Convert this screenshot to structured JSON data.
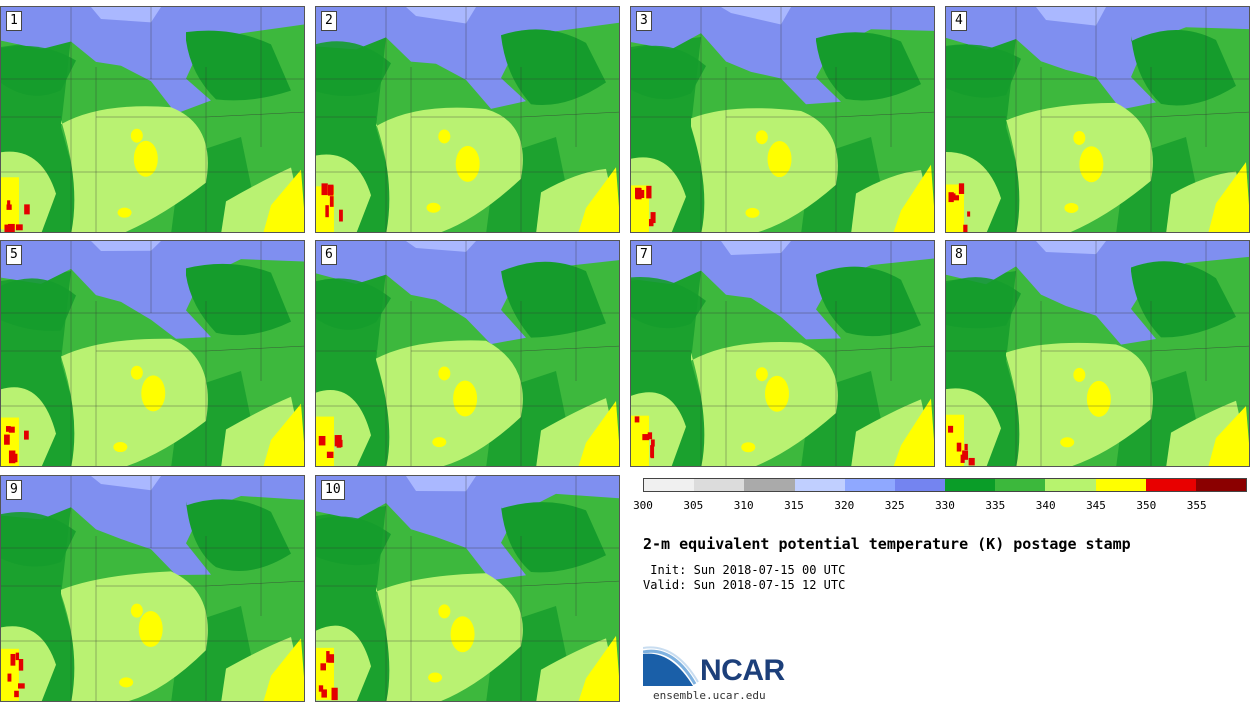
{
  "title": "2-m equivalent potential temperature (K) postage stamp",
  "init": "Sun 2018-07-15 00 UTC",
  "valid": "Sun 2018-07-15 12 UTC",
  "init_label": " Init:",
  "valid_label": "Valid:",
  "members": [
    "1",
    "2",
    "3",
    "4",
    "5",
    "6",
    "7",
    "8",
    "9",
    "10"
  ],
  "colorbar": {
    "ticks": [
      "300",
      "305",
      "310",
      "315",
      "320",
      "325",
      "330",
      "335",
      "340",
      "345",
      "350",
      "355"
    ],
    "colors": [
      "#f0f0f0",
      "#dcdcdc",
      "#aaaaaa",
      "#c0cfff",
      "#8fa8ff",
      "#7484f0",
      "#0a9d28",
      "#3cb83c",
      "#b7f36e",
      "#ffff00",
      "#e80000",
      "#8b0000"
    ]
  },
  "logo": {
    "name": "NCAR",
    "url": "ensemble.ucar.edu"
  },
  "map_colors": {
    "blue": "#7f8ff0",
    "light_blue": "#aab8ff",
    "dark_green": "#159c2c",
    "green": "#3db83d",
    "light_green": "#b9f272",
    "yellow": "#ffff00",
    "red": "#e30000"
  }
}
